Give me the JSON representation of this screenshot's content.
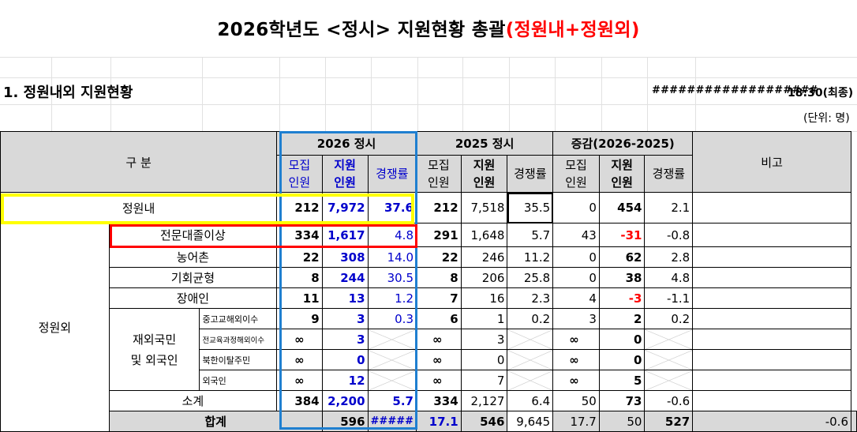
{
  "title": {
    "main": "2026학년도 <정시> 지원현황 총괄",
    "highlight": "(정원내+정원외)"
  },
  "section_title": "1. 정원내외 지원현황",
  "timestamp_hash": "###################",
  "timestamp_time": "18:30(최종)",
  "unit_note": "(단위: 명)",
  "header": {
    "category": "구 분",
    "y2026": "2026 정시",
    "y2025": "2025 정시",
    "diff": "증감(2026-2025)",
    "remarks": "비고",
    "recruit_l1": "모집",
    "recruit_l2": "인원",
    "apply_l1": "지원",
    "apply_l2": "인원",
    "ratio": "경쟁률"
  },
  "rows": {
    "inside": {
      "label": "정원내",
      "r26": "212",
      "a26": "7,972",
      "c26": "37.6",
      "r25": "212",
      "a25": "7,518",
      "c25": "35.5",
      "dr": "0",
      "da": "454",
      "dc": "2.1"
    },
    "junior": {
      "label": "전문대졸이상",
      "r26": "334",
      "a26": "1,617",
      "c26": "4.8",
      "r25": "291",
      "a25": "1,648",
      "c25": "5.7",
      "dr": "43",
      "da": "-31",
      "dc": "-0.8"
    },
    "farm": {
      "label": "농어촌",
      "r26": "22",
      "a26": "308",
      "c26": "14.0",
      "r25": "22",
      "a25": "246",
      "c25": "11.2",
      "dr": "0",
      "da": "62",
      "dc": "2.8"
    },
    "equal": {
      "label": "기회균형",
      "r26": "8",
      "a26": "244",
      "c26": "30.5",
      "r25": "8",
      "a25": "206",
      "c25": "25.8",
      "dr": "0",
      "da": "38",
      "dc": "4.8"
    },
    "disab": {
      "label": "장애인",
      "r26": "11",
      "a26": "13",
      "c26": "1.2",
      "r25": "7",
      "a25": "16",
      "c25": "2.3",
      "dr": "4",
      "da": "-3",
      "dc": "-1.1"
    },
    "abroad_a": {
      "label": "중고교해외이수",
      "r26": "9",
      "a26": "3",
      "c26": "0.3",
      "r25": "6",
      "a25": "1",
      "c25": "0.2",
      "dr": "3",
      "da": "2",
      "dc": "0.2"
    },
    "abroad_b": {
      "label": "전교육과정해외이수",
      "r26": "∞",
      "a26": "3",
      "r25": "∞",
      "a25": "3",
      "dr": "∞",
      "da": "0"
    },
    "defector": {
      "label": "북한이탈주민",
      "r26": "∞",
      "a26": "0",
      "r25": "∞",
      "a25": "0",
      "dr": "∞",
      "da": "0"
    },
    "foreign": {
      "label": "외국인",
      "r26": "∞",
      "a26": "12",
      "r25": "∞",
      "a25": "7",
      "dr": "∞",
      "da": "5"
    },
    "subtotal": {
      "label": "소계",
      "r26": "384",
      "a26": "2,200",
      "c26": "5.7",
      "r25": "334",
      "a25": "2,127",
      "c25": "6.4",
      "dr": "50",
      "da": "73",
      "dc": "-0.6"
    },
    "total": {
      "label": "합계",
      "r26": "596",
      "a26": "#####",
      "c26": "17.1",
      "r25": "546",
      "a25": "9,645",
      "c25": "17.7",
      "dr": "50",
      "da": "527",
      "dc": "-0.6"
    }
  },
  "group_outside": "정원외",
  "group_overseas_l1": "재외국민",
  "group_overseas_l2": "및 외국인",
  "colors": {
    "title_red": "#ff0000",
    "blue_text": "#0000cc",
    "box_blue": "#1f7fd0",
    "box_yellow": "#ffff00",
    "box_red": "#ff0000",
    "header_gray": "#d9d9d9"
  }
}
